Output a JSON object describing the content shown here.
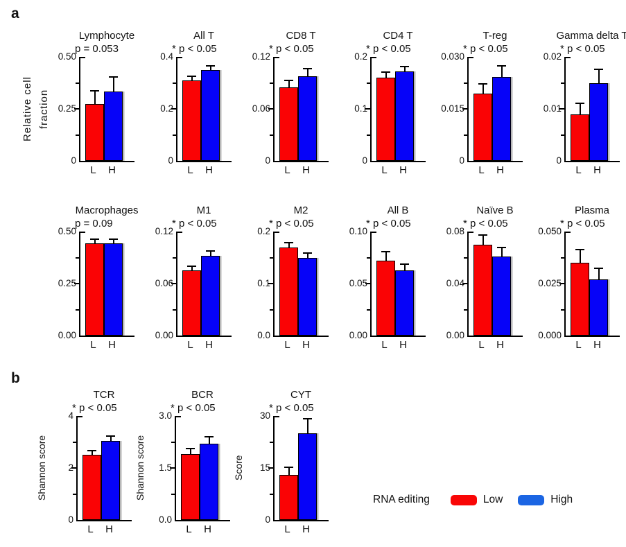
{
  "figure": {
    "panel_a_label": "a",
    "panel_b_label": "b",
    "row1_ylabel": "Relative cell fraction",
    "legend": {
      "title": "RNA editing",
      "items": [
        {
          "label": "Low",
          "color": "#f90606"
        },
        {
          "label": "High",
          "color": "#1b65e3"
        }
      ]
    }
  },
  "colors": {
    "low": "#fa0305",
    "high": "#0603f8",
    "legend_low": "#f90606",
    "legend_high": "#1b65e3",
    "axis": "#111111"
  },
  "chart_data": [
    {
      "type": "bar",
      "panel": "a",
      "title": "Lymphocyte",
      "p_label": "p = 0.053",
      "significant": false,
      "ylabel": "",
      "categories": [
        "L",
        "H"
      ],
      "ymax": 0.5,
      "ylim": [
        0,
        0.5
      ],
      "yticks": [
        {
          "v": 0.5,
          "label": "0.50"
        },
        {
          "v": 0.25,
          "label": "0.25"
        },
        {
          "v": 0,
          "label": "0"
        }
      ],
      "series": [
        {
          "name": "Low",
          "value": 0.273,
          "error": 0.06
        },
        {
          "name": "High",
          "value": 0.335,
          "error": 0.065
        }
      ]
    },
    {
      "type": "bar",
      "panel": "a",
      "title": "All T",
      "p_label": "* p < 0.05",
      "significant": true,
      "ylabel": "",
      "categories": [
        "L",
        "H"
      ],
      "ymax": 0.4,
      "ylim": [
        0,
        0.4
      ],
      "yticks": [
        {
          "v": 0.4,
          "label": "0.4"
        },
        {
          "v": 0.2,
          "label": "0.2"
        },
        {
          "v": 0,
          "label": "0"
        }
      ],
      "series": [
        {
          "name": "Low",
          "value": 0.31,
          "error": 0.012
        },
        {
          "name": "High",
          "value": 0.35,
          "error": 0.012
        }
      ]
    },
    {
      "type": "bar",
      "panel": "a",
      "title": "CD8 T",
      "p_label": "* p < 0.05",
      "significant": true,
      "ylabel": "",
      "categories": [
        "L",
        "H"
      ],
      "ymax": 0.12,
      "ylim": [
        0,
        0.12
      ],
      "yticks": [
        {
          "v": 0.12,
          "label": "0.12"
        },
        {
          "v": 0.06,
          "label": "0.06"
        },
        {
          "v": 0,
          "label": "0"
        }
      ],
      "series": [
        {
          "name": "Low",
          "value": 0.085,
          "error": 0.007
        },
        {
          "name": "High",
          "value": 0.098,
          "error": 0.008
        }
      ]
    },
    {
      "type": "bar",
      "panel": "a",
      "title": "CD4 T",
      "p_label": "* p < 0.05",
      "significant": true,
      "ylabel": "",
      "categories": [
        "L",
        "H"
      ],
      "ymax": 0.2,
      "ylim": [
        0,
        0.2
      ],
      "yticks": [
        {
          "v": 0.2,
          "label": "0.2"
        },
        {
          "v": 0.1,
          "label": "0.1"
        },
        {
          "v": 0,
          "label": "0"
        }
      ],
      "series": [
        {
          "name": "Low",
          "value": 0.16,
          "error": 0.01
        },
        {
          "name": "High",
          "value": 0.172,
          "error": 0.008
        }
      ]
    },
    {
      "type": "bar",
      "panel": "a",
      "title": "T-reg",
      "p_label": "* p < 0.05",
      "significant": true,
      "ylabel": "",
      "categories": [
        "L",
        "H"
      ],
      "ymax": 0.03,
      "ylim": [
        0,
        0.03
      ],
      "yticks": [
        {
          "v": 0.03,
          "label": "0.030"
        },
        {
          "v": 0.015,
          "label": "0.015"
        },
        {
          "v": 0,
          "label": "0"
        }
      ],
      "series": [
        {
          "name": "Low",
          "value": 0.0195,
          "error": 0.0025
        },
        {
          "name": "High",
          "value": 0.0243,
          "error": 0.003
        }
      ]
    },
    {
      "type": "bar",
      "panel": "a",
      "title": "Gamma delta T",
      "p_label": "* p < 0.05",
      "significant": true,
      "ylabel": "",
      "categories": [
        "L",
        "H"
      ],
      "ymax": 0.02,
      "ylim": [
        0,
        0.02
      ],
      "yticks": [
        {
          "v": 0.02,
          "label": "0.02"
        },
        {
          "v": 0.01,
          "label": "0.01"
        },
        {
          "v": 0,
          "label": "0"
        }
      ],
      "series": [
        {
          "name": "Low",
          "value": 0.009,
          "error": 0.002
        },
        {
          "name": "High",
          "value": 0.015,
          "error": 0.0025
        }
      ]
    },
    {
      "type": "bar",
      "panel": "a",
      "title": "Macrophages",
      "p_label": "p = 0.09",
      "significant": false,
      "ylabel": "",
      "categories": [
        "L",
        "H"
      ],
      "ymax": 0.5,
      "ylim": [
        0,
        0.5
      ],
      "yticks": [
        {
          "v": 0.5,
          "label": "0.50"
        },
        {
          "v": 0.25,
          "label": "0.25"
        },
        {
          "v": 0,
          "label": "0.00"
        }
      ],
      "series": [
        {
          "name": "Low",
          "value": 0.445,
          "error": 0.015
        },
        {
          "name": "High",
          "value": 0.445,
          "error": 0.015
        }
      ]
    },
    {
      "type": "bar",
      "panel": "a",
      "title": "M1",
      "p_label": "* p < 0.05",
      "significant": true,
      "ylabel": "",
      "categories": [
        "L",
        "H"
      ],
      "ymax": 0.12,
      "ylim": [
        0,
        0.12
      ],
      "yticks": [
        {
          "v": 0.12,
          "label": "0.12"
        },
        {
          "v": 0.06,
          "label": "0.06"
        },
        {
          "v": 0,
          "label": "0.00"
        }
      ],
      "series": [
        {
          "name": "Low",
          "value": 0.075,
          "error": 0.004
        },
        {
          "name": "High",
          "value": 0.092,
          "error": 0.005
        }
      ]
    },
    {
      "type": "bar",
      "panel": "a",
      "title": "M2",
      "p_label": "* p < 0.05",
      "significant": true,
      "ylabel": "",
      "categories": [
        "L",
        "H"
      ],
      "ymax": 0.2,
      "ylim": [
        0,
        0.2
      ],
      "yticks": [
        {
          "v": 0.2,
          "label": "0.2"
        },
        {
          "v": 0.1,
          "label": "0.1"
        },
        {
          "v": 0,
          "label": "0.0"
        }
      ],
      "series": [
        {
          "name": "Low",
          "value": 0.17,
          "error": 0.008
        },
        {
          "name": "High",
          "value": 0.15,
          "error": 0.008
        }
      ]
    },
    {
      "type": "bar",
      "panel": "a",
      "title": "All B",
      "p_label": "* p < 0.05",
      "significant": true,
      "ylabel": "",
      "categories": [
        "L",
        "H"
      ],
      "ymax": 0.1,
      "ylim": [
        0,
        0.1
      ],
      "yticks": [
        {
          "v": 0.1,
          "label": "0.10"
        },
        {
          "v": 0.05,
          "label": "0.05"
        },
        {
          "v": 0,
          "label": "0.00"
        }
      ],
      "series": [
        {
          "name": "Low",
          "value": 0.072,
          "error": 0.008
        },
        {
          "name": "High",
          "value": 0.063,
          "error": 0.005
        }
      ]
    },
    {
      "type": "bar",
      "panel": "a",
      "title": "Naïve B",
      "p_label": "* p < 0.05",
      "significant": true,
      "ylabel": "",
      "categories": [
        "L",
        "H"
      ],
      "ymax": 0.08,
      "ylim": [
        0,
        0.08
      ],
      "yticks": [
        {
          "v": 0.08,
          "label": "0.08"
        },
        {
          "v": 0.04,
          "label": "0.04"
        },
        {
          "v": 0,
          "label": "0.00"
        }
      ],
      "series": [
        {
          "name": "Low",
          "value": 0.07,
          "error": 0.007
        },
        {
          "name": "High",
          "value": 0.061,
          "error": 0.006
        }
      ]
    },
    {
      "type": "bar",
      "panel": "a",
      "title": "Plasma",
      "p_label": "* p < 0.05",
      "significant": true,
      "ylabel": "",
      "categories": [
        "L",
        "H"
      ],
      "ymax": 0.05,
      "ylim": [
        0,
        0.05
      ],
      "yticks": [
        {
          "v": 0.05,
          "label": "0.050"
        },
        {
          "v": 0.025,
          "label": "0.025"
        },
        {
          "v": 0,
          "label": "0.000"
        }
      ],
      "series": [
        {
          "name": "Low",
          "value": 0.035,
          "error": 0.006
        },
        {
          "name": "High",
          "value": 0.027,
          "error": 0.005
        }
      ]
    },
    {
      "type": "bar",
      "panel": "b",
      "title": "TCR",
      "p_label": "* p < 0.05",
      "significant": true,
      "ylabel": "Shannon score",
      "categories": [
        "L",
        "H"
      ],
      "ymax": 4,
      "ylim": [
        0,
        4
      ],
      "yticks": [
        {
          "v": 4,
          "label": "4"
        },
        {
          "v": 2,
          "label": "2"
        },
        {
          "v": 0,
          "label": "0"
        }
      ],
      "series": [
        {
          "name": "Low",
          "value": 2.5,
          "error": 0.15
        },
        {
          "name": "High",
          "value": 3.05,
          "error": 0.15
        }
      ]
    },
    {
      "type": "bar",
      "panel": "b",
      "title": "BCR",
      "p_label": "* p < 0.05",
      "significant": true,
      "ylabel": "Shannon score",
      "categories": [
        "L",
        "H"
      ],
      "ymax": 3,
      "ylim": [
        0,
        3
      ],
      "yticks": [
        {
          "v": 3,
          "label": "3.0"
        },
        {
          "v": 1.5,
          "label": "1.5"
        },
        {
          "v": 0,
          "label": "0.0"
        }
      ],
      "series": [
        {
          "name": "Low",
          "value": 1.9,
          "error": 0.15
        },
        {
          "name": "High",
          "value": 2.2,
          "error": 0.18
        }
      ]
    },
    {
      "type": "bar",
      "panel": "b",
      "title": "CYT",
      "p_label": "* p < 0.05",
      "significant": true,
      "ylabel": "Score",
      "categories": [
        "L",
        "H"
      ],
      "ymax": 30,
      "ylim": [
        0,
        30
      ],
      "yticks": [
        {
          "v": 30,
          "label": "30"
        },
        {
          "v": 15,
          "label": "15"
        },
        {
          "v": 0,
          "label": "0"
        }
      ],
      "series": [
        {
          "name": "Low",
          "value": 13,
          "error": 2
        },
        {
          "name": "High",
          "value": 25,
          "error": 4
        }
      ]
    }
  ]
}
